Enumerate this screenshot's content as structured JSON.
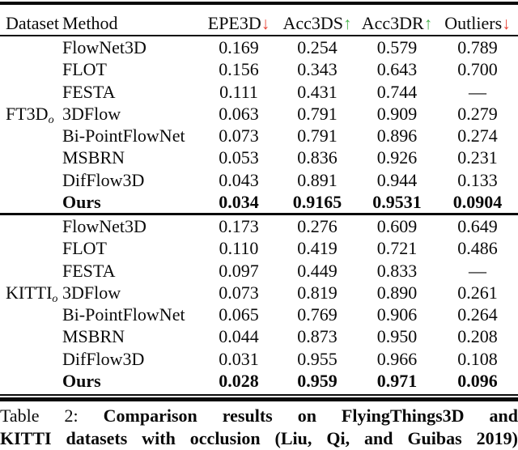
{
  "colors": {
    "arrow_up": "#47b34c",
    "arrow_down": "#e74133",
    "text": "#0a0a0a",
    "background": "#ffffff"
  },
  "icons": {
    "up": "↑",
    "down": "↓"
  },
  "table": {
    "headers": [
      {
        "label": "Dataset",
        "arrow": null
      },
      {
        "label": "Method",
        "arrow": null
      },
      {
        "label": "EPE3D",
        "arrow": "down"
      },
      {
        "label": "Acc3DS",
        "arrow": "up"
      },
      {
        "label": "Acc3DR",
        "arrow": "up"
      },
      {
        "label": "Outliers",
        "arrow": "down"
      }
    ],
    "blocks": [
      {
        "dataset": "FT3D",
        "dataset_subscript": "o",
        "rows": [
          {
            "method": "FlowNet3D",
            "values": [
              "0.169",
              "0.254",
              "0.579",
              "0.789"
            ],
            "bold": false
          },
          {
            "method": "FLOT",
            "values": [
              "0.156",
              "0.343",
              "0.643",
              "0.700"
            ],
            "bold": false
          },
          {
            "method": "FESTA",
            "values": [
              "0.111",
              "0.431",
              "0.744",
              "—"
            ],
            "bold": false
          },
          {
            "method": "3DFlow",
            "values": [
              "0.063",
              "0.791",
              "0.909",
              "0.279"
            ],
            "bold": false
          },
          {
            "method": "Bi-PointFlowNet",
            "values": [
              "0.073",
              "0.791",
              "0.896",
              "0.274"
            ],
            "bold": false
          },
          {
            "method": "MSBRN",
            "values": [
              "0.053",
              "0.836",
              "0.926",
              "0.231"
            ],
            "bold": false
          },
          {
            "method": "DifFlow3D",
            "values": [
              "0.043",
              "0.891",
              "0.944",
              "0.133"
            ],
            "bold": false
          },
          {
            "method": "Ours",
            "values": [
              "0.034",
              "0.9165",
              "0.9531",
              "0.0904"
            ],
            "bold": true
          }
        ]
      },
      {
        "dataset": "KITTI",
        "dataset_subscript": "o",
        "rows": [
          {
            "method": "FlowNet3D",
            "values": [
              "0.173",
              "0.276",
              "0.609",
              "0.649"
            ],
            "bold": false
          },
          {
            "method": "FLOT",
            "values": [
              "0.110",
              "0.419",
              "0.721",
              "0.486"
            ],
            "bold": false
          },
          {
            "method": "FESTA",
            "values": [
              "0.097",
              "0.449",
              "0.833",
              "—"
            ],
            "bold": false
          },
          {
            "method": "3DFlow",
            "values": [
              "0.073",
              "0.819",
              "0.890",
              "0.261"
            ],
            "bold": false
          },
          {
            "method": "Bi-PointFlowNet",
            "values": [
              "0.065",
              "0.769",
              "0.906",
              "0.264"
            ],
            "bold": false
          },
          {
            "method": "MSBRN",
            "values": [
              "0.044",
              "0.873",
              "0.950",
              "0.208"
            ],
            "bold": false
          },
          {
            "method": "DifFlow3D",
            "values": [
              "0.031",
              "0.955",
              "0.966",
              "0.108"
            ],
            "bold": false
          },
          {
            "method": "Ours",
            "values": [
              "0.028",
              "0.959",
              "0.971",
              "0.096"
            ],
            "bold": true
          }
        ]
      }
    ]
  },
  "caption": {
    "prefix": "Table 2:",
    "bold_line1": "Comparison results on FlyingThings3D and",
    "bold_line2": "KITTI datasets with occlusion (Liu, Qi, and Guibas 2019)"
  }
}
